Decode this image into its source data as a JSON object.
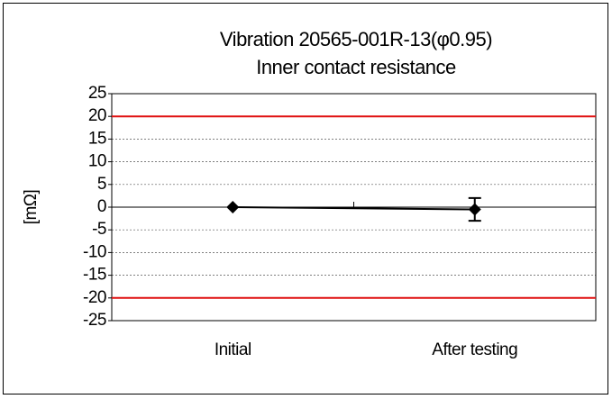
{
  "chart_data": {
    "type": "line",
    "title": "Vibration 20565-001R-13(φ0.95)",
    "subtitle": "Inner contact resistance",
    "y_label": "[mΩ]",
    "categories": [
      "Initial",
      "After testing"
    ],
    "series": [
      {
        "color": "#000000",
        "values": [
          0,
          -0.5
        ],
        "errors": [
          null,
          2.5
        ]
      }
    ],
    "ylim": [
      -25,
      25
    ],
    "yticks": [
      -25,
      -20,
      -15,
      -10,
      -5,
      0,
      5,
      10,
      15,
      20,
      25
    ],
    "grid": true,
    "limit_lines": [
      {
        "value": 20,
        "color": "#e01010"
      },
      {
        "value": -20,
        "color": "#e01010"
      }
    ]
  }
}
